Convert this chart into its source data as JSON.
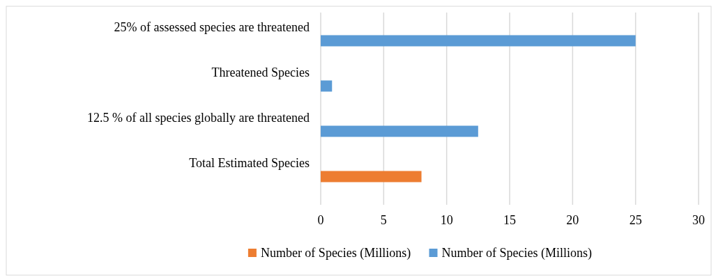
{
  "chart_data": {
    "type": "bar",
    "orientation": "horizontal",
    "categories": [
      "25% of assessed species are threatened",
      "Threatened Species",
      "12.5 % of all species globally are threatened",
      "Total Estimated Species"
    ],
    "series": [
      {
        "name": "Number of Species (Millions)",
        "color": "#ed7d31",
        "values": [
          null,
          null,
          null,
          8
        ]
      },
      {
        "name": "Number of Species (Millions)",
        "color": "#5b9bd5",
        "values": [
          25,
          0.9,
          12.5,
          null
        ]
      }
    ],
    "xlim": [
      0,
      30
    ],
    "xticks": [
      0,
      5,
      10,
      15,
      20,
      25,
      30
    ],
    "grid": "x",
    "legend": "bottom"
  }
}
